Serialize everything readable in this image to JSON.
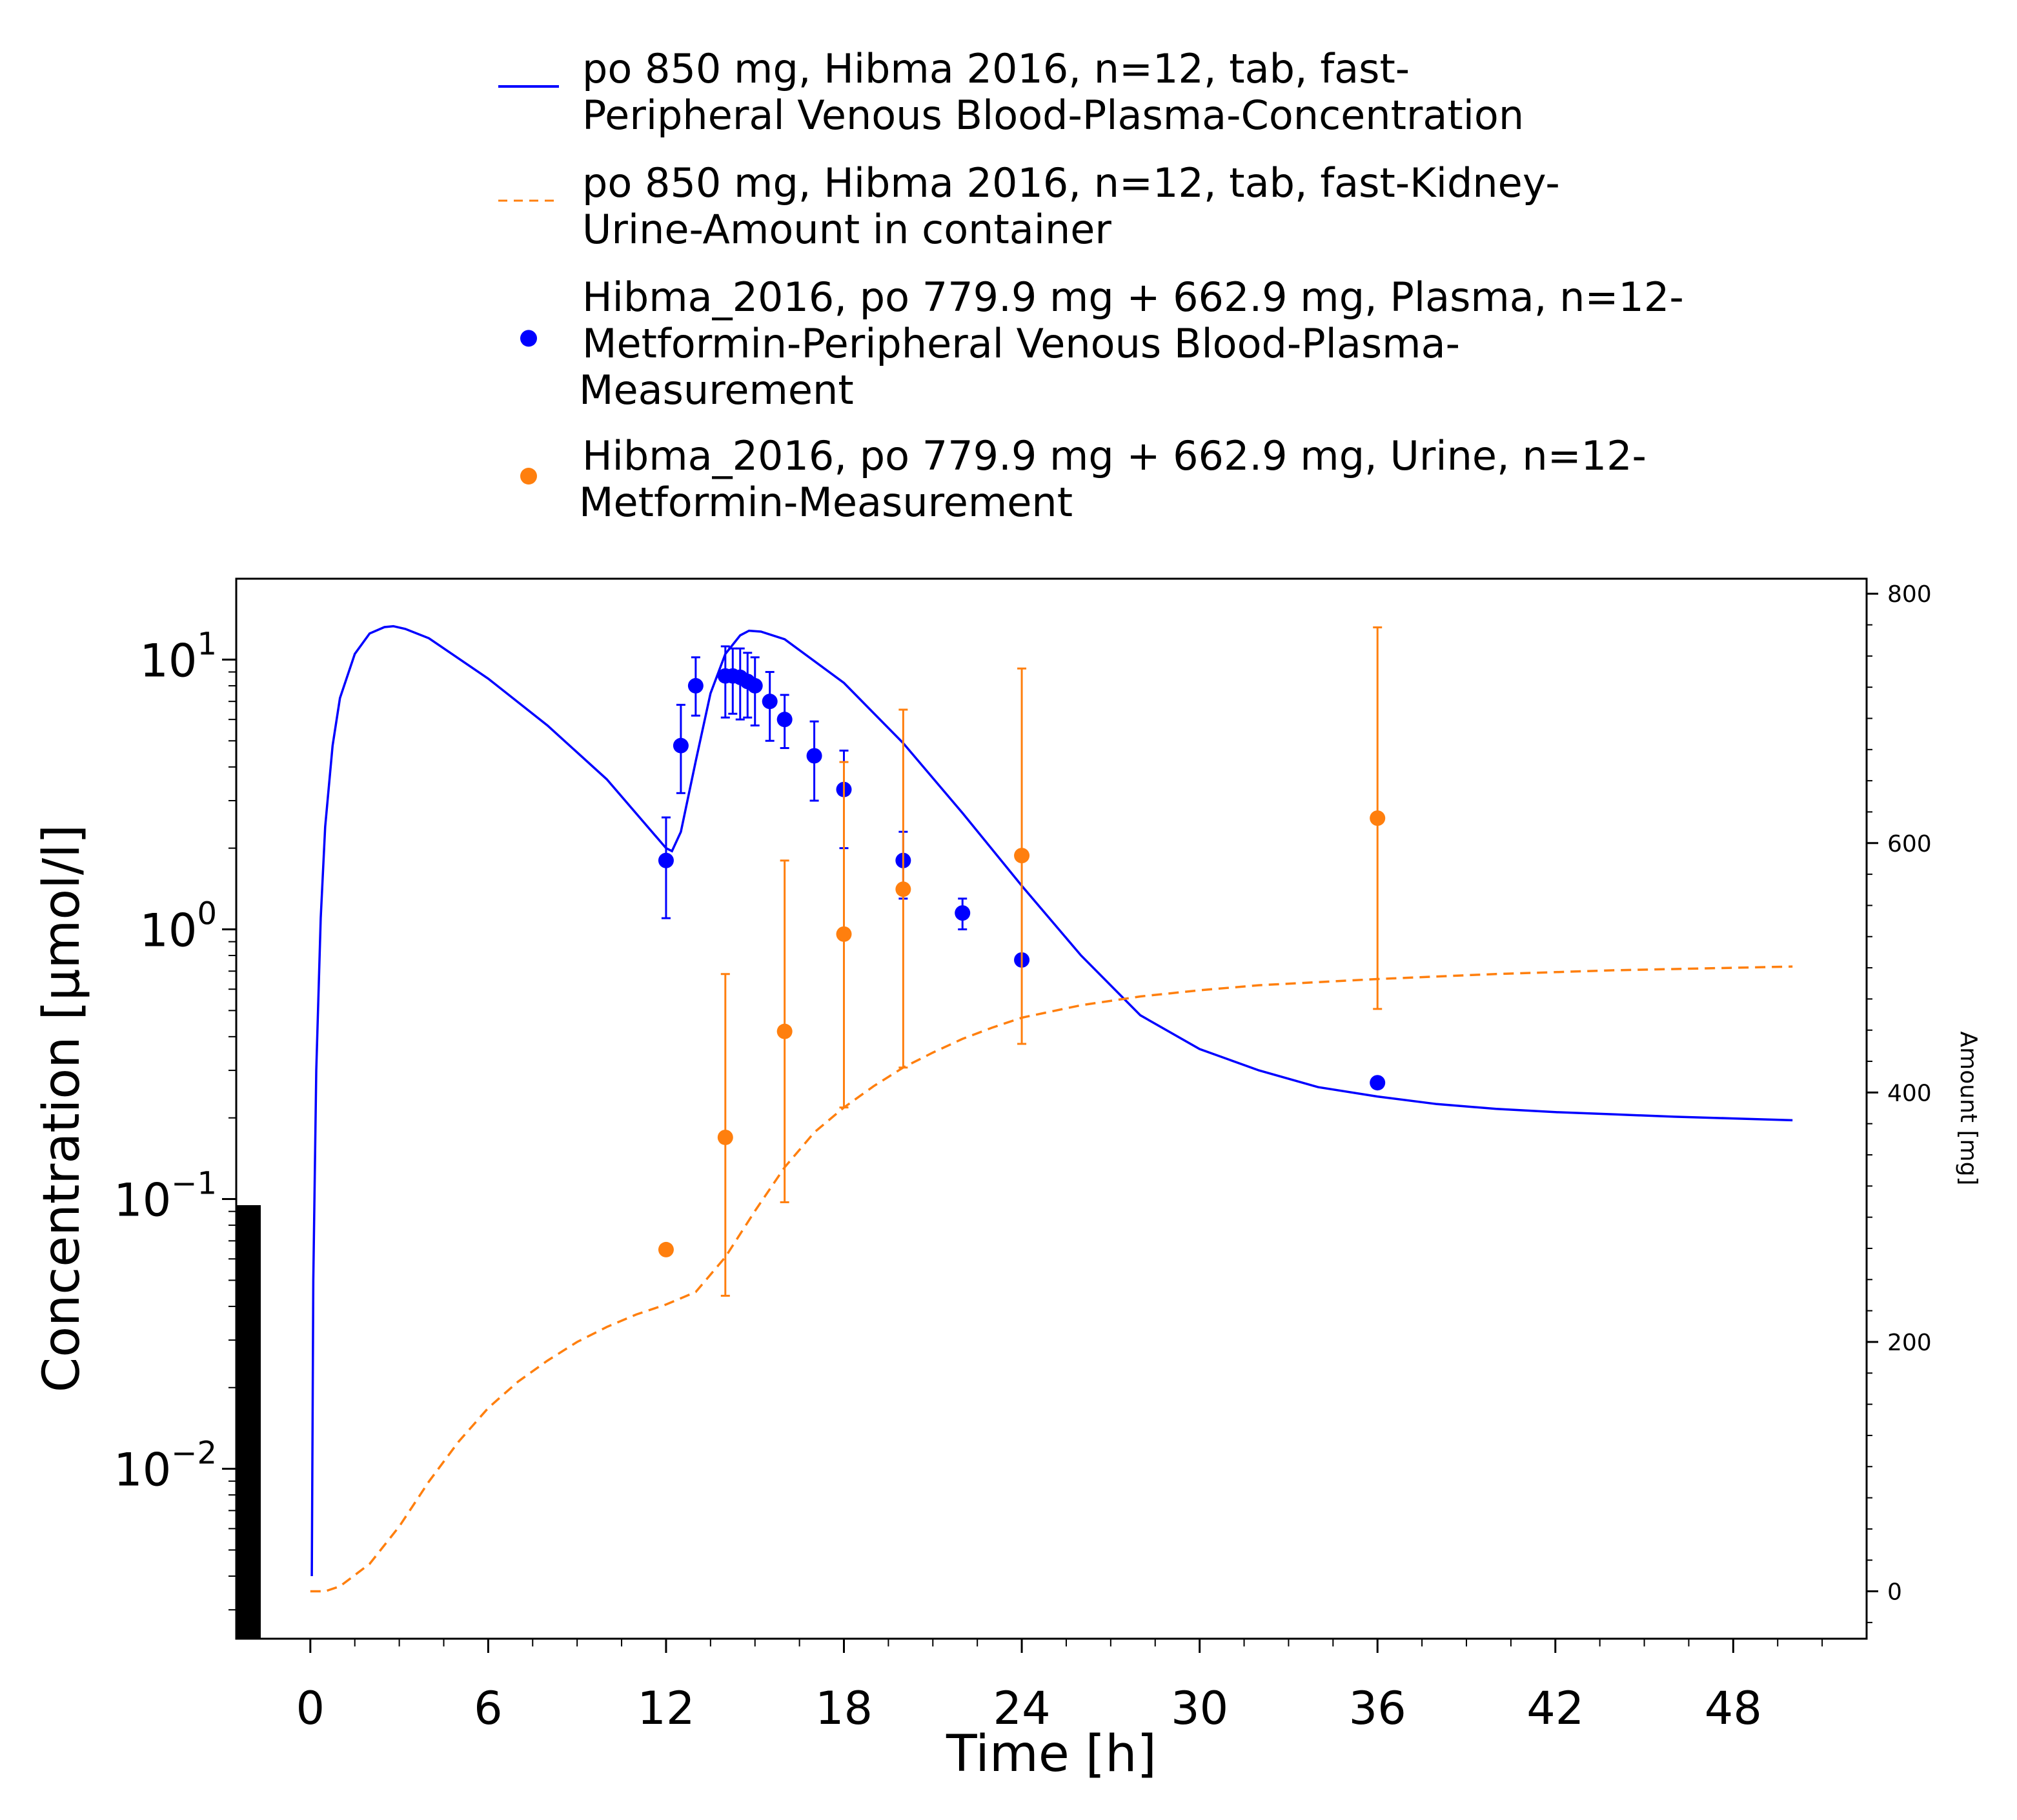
{
  "legend": [
    {
      "lines": [
        "po 850 mg, Hibma 2016, n=12, tab, fast-",
        "Peripheral Venous Blood-Plasma-Concentration"
      ],
      "style": "solid",
      "color": "#0000ff"
    },
    {
      "lines": [
        "po 850 mg, Hibma 2016, n=12, tab, fast-Kidney-",
        "Urine-Amount in container"
      ],
      "style": "dashed",
      "color": "#ff7f0e"
    },
    {
      "lines": [
        "Hibma_2016, po 779.9 mg + 662.9 mg, Plasma, n=12-",
        "Metformin-Peripheral Venous Blood-Plasma-",
        "Measurement"
      ],
      "style": "marker",
      "color": "#0000ff"
    },
    {
      "lines": [
        "Hibma_2016, po 779.9 mg + 662.9 mg, Urine, n=12-",
        "Metformin-Measurement"
      ],
      "style": "marker",
      "color": "#ff7f0e"
    }
  ],
  "chart_data": {
    "type": "line",
    "xlabel": "Time [h]",
    "ylabel": "Concentration [µmol/l]",
    "y2label": "Amount [mg]",
    "x_ticks": [
      "0",
      "6",
      "12",
      "18",
      "24",
      "30",
      "36",
      "42",
      "48"
    ],
    "y_ticks": [
      {
        "base": "10",
        "exp": "1"
      },
      {
        "base": "10",
        "exp": "0"
      },
      {
        "base": "10",
        "exp": "−1"
      },
      {
        "base": "10",
        "exp": "−2"
      }
    ],
    "y2_ticks": [
      "0",
      "200",
      "400",
      "600",
      "800"
    ],
    "xlim": [
      -2.5,
      52.5
    ],
    "ylim_log10": [
      -2.63,
      1.3
    ],
    "y2lim": [
      -38,
      812
    ],
    "yscale": "log",
    "series": [
      {
        "name": "po 850 mg, Hibma 2016, n=12, tab, fast-Peripheral Venous Blood-Plasma-Concentration",
        "kind": "line",
        "axis": "left",
        "color": "#0000ff",
        "dash": "solid",
        "x": [
          0.05,
          0.1,
          0.2,
          0.35,
          0.5,
          0.75,
          1.0,
          1.5,
          2.0,
          2.5,
          2.8,
          3.2,
          4,
          6,
          8,
          10,
          12,
          12.2,
          12.5,
          13,
          13.5,
          14,
          14.5,
          14.8,
          15.2,
          16,
          18,
          20,
          22,
          24,
          26,
          28,
          30,
          32,
          34,
          36,
          38,
          40,
          42,
          44,
          46,
          48,
          50
        ],
        "y": [
          0.004,
          0.05,
          0.3,
          1.1,
          2.4,
          4.8,
          7.2,
          10.5,
          12.5,
          13.2,
          13.3,
          13.0,
          12.0,
          8.5,
          5.7,
          3.6,
          2.0,
          1.95,
          2.3,
          4.2,
          7.5,
          10.5,
          12.3,
          12.8,
          12.7,
          11.9,
          8.2,
          4.9,
          2.7,
          1.45,
          0.8,
          0.48,
          0.36,
          0.3,
          0.26,
          0.24,
          0.225,
          0.216,
          0.21,
          0.206,
          0.202,
          0.199,
          0.196
        ]
      },
      {
        "name": "po 850 mg, Hibma 2016, n=12, tab, fast-Kidney-Urine-Amount in container",
        "kind": "line",
        "axis": "right",
        "color": "#ff7f0e",
        "dash": "dashed",
        "x": [
          0,
          0.5,
          1,
          2,
          3,
          4,
          5,
          6,
          7,
          8,
          9,
          10,
          11,
          12,
          13,
          14,
          15,
          16,
          17,
          18,
          19,
          20,
          21,
          22,
          23,
          24,
          26,
          28,
          30,
          32,
          36,
          40,
          44,
          48,
          50
        ],
        "y": [
          0,
          0,
          4,
          22,
          52,
          88,
          120,
          147,
          168,
          185,
          200,
          212,
          222,
          230,
          240,
          268,
          305,
          340,
          368,
          388,
          405,
          420,
          432,
          443,
          452,
          460,
          470,
          477,
          482,
          486,
          491,
          495,
          498,
          500,
          501
        ]
      },
      {
        "name": "Hibma_2016, po 779.9 mg + 662.9 mg, Plasma, n=12-Metformin-Peripheral Venous Blood-Plasma-Measurement",
        "kind": "scatter",
        "axis": "left",
        "color": "#0000ff",
        "x": [
          12,
          12.5,
          13,
          14,
          14.25,
          14.5,
          14.75,
          15,
          15.5,
          16,
          17,
          18,
          20,
          22,
          24,
          36
        ],
        "y": [
          1.8,
          4.8,
          8.0,
          8.7,
          8.7,
          8.6,
          8.3,
          8.0,
          7.0,
          6.0,
          4.4,
          3.3,
          1.8,
          1.15,
          0.77,
          0.27
        ],
        "err_low": [
          1.1,
          3.2,
          6.2,
          6.1,
          6.3,
          6.0,
          6.1,
          5.7,
          5.0,
          4.7,
          3.0,
          2.0,
          1.3,
          1.0,
          0.75,
          0.27
        ],
        "err_high": [
          2.6,
          6.8,
          10.2,
          11.2,
          11.0,
          11.0,
          10.6,
          10.2,
          9.0,
          7.4,
          5.9,
          4.6,
          2.3,
          1.3,
          0.79,
          0.27
        ]
      },
      {
        "name": "Hibma_2016, po 779.9 mg + 662.9 mg, Urine, n=12-Metformin-Measurement",
        "kind": "scatter",
        "axis": "right",
        "color": "#ff7f0e",
        "x": [
          12,
          14,
          16,
          18,
          20,
          24,
          36
        ],
        "y": [
          274,
          364,
          449,
          527,
          563,
          590,
          620
        ],
        "err_low": [
          274,
          237,
          312,
          388,
          420,
          439,
          467
        ],
        "err_high": [
          274,
          495,
          586,
          665,
          707,
          740,
          773
        ]
      }
    ]
  }
}
